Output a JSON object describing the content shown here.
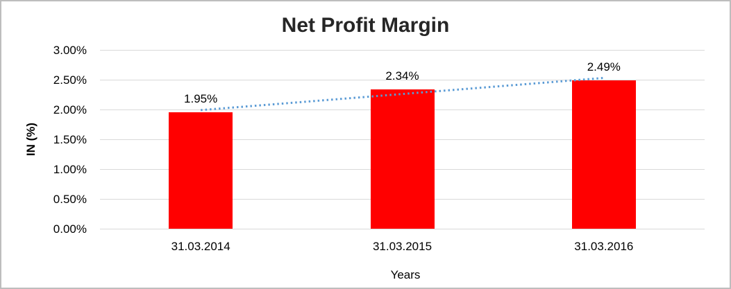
{
  "chart_data": {
    "type": "bar",
    "title": "Net Profit Margin",
    "categories": [
      "31.03.2014",
      "31.03.2015",
      "31.03.2016"
    ],
    "values": [
      1.95,
      2.34,
      2.49
    ],
    "data_labels": [
      "1.95%",
      "2.34%",
      "2.49%"
    ],
    "xlabel": "Years",
    "ylabel": "IN (%)",
    "ylim": [
      0,
      3
    ],
    "ytick_step": 0.5,
    "ytick_labels": [
      "0.00%",
      "0.50%",
      "1.00%",
      "1.50%",
      "2.00%",
      "2.50%",
      "3.00%"
    ],
    "grid": true,
    "legend": "none",
    "trendline": {
      "type": "linear",
      "style": "dotted",
      "color": "#5B9BD5"
    }
  },
  "colors": {
    "bar": "#FF0000",
    "trendline": "#5B9BD5",
    "gridline": "#D9D9D9",
    "title_text": "#262626",
    "axis_text": "#000000",
    "frame_border": "#BDBDBD",
    "background": "#FFFFFF"
  }
}
